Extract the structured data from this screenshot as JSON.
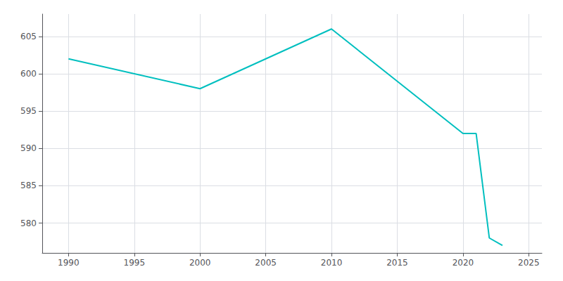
{
  "chart_data": {
    "type": "line",
    "x": [
      1990,
      2000,
      2010,
      2020,
      2021,
      2022,
      2023
    ],
    "values": [
      602,
      598,
      606,
      592,
      592,
      578,
      577
    ],
    "color": "#00BFBF",
    "xlim": [
      1988,
      2026
    ],
    "xticks": [
      1990,
      1995,
      2000,
      2005,
      2010,
      2015,
      2020,
      2025
    ],
    "ylim": [
      576,
      608
    ],
    "yticks": [
      580,
      585,
      590,
      595,
      600,
      605
    ],
    "grid": true
  }
}
